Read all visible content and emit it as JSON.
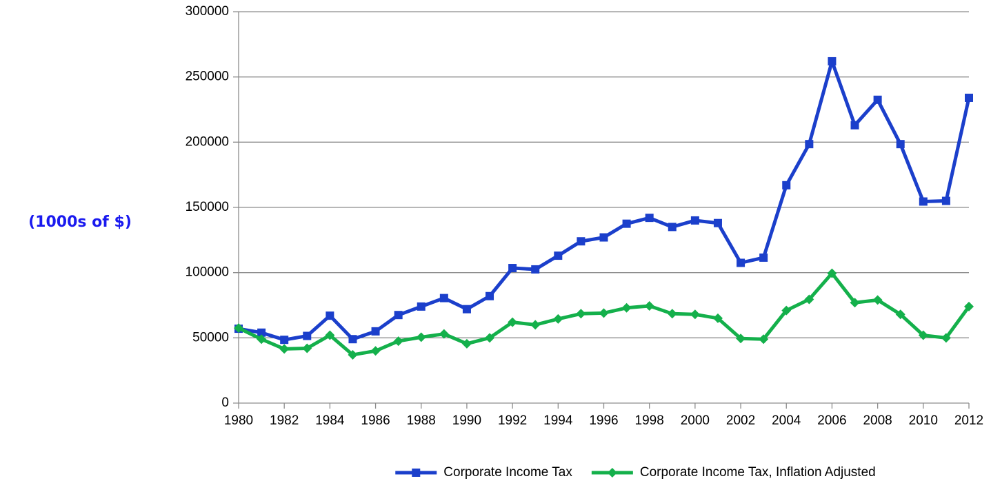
{
  "chart_data": {
    "type": "line",
    "y_label": "(1000s of $)",
    "x": [
      1980,
      1981,
      1982,
      1983,
      1984,
      1985,
      1986,
      1987,
      1988,
      1989,
      1990,
      1991,
      1992,
      1993,
      1994,
      1995,
      1996,
      1997,
      1998,
      1999,
      2000,
      2001,
      2002,
      2003,
      2004,
      2005,
      2006,
      2007,
      2008,
      2009,
      2010,
      2011,
      2012
    ],
    "xlim": [
      1980,
      2012
    ],
    "xticks": [
      1980,
      1982,
      1984,
      1986,
      1988,
      1990,
      1992,
      1994,
      1996,
      1998,
      2000,
      2002,
      2004,
      2006,
      2008,
      2010,
      2012
    ],
    "ylim": [
      0,
      300000
    ],
    "yticks": [
      0,
      50000,
      100000,
      150000,
      200000,
      250000,
      300000
    ],
    "grid": true,
    "legend": "bottom",
    "series": [
      {
        "name": "Corporate Income Tax",
        "color": "#1b3fcb",
        "marker": "square",
        "values": [
          57000,
          54000,
          48500,
          51500,
          67000,
          49000,
          55000,
          67500,
          74000,
          80500,
          72000,
          82000,
          103500,
          102500,
          113000,
          124000,
          127000,
          137500,
          142000,
          135000,
          140000,
          138000,
          107500,
          111500,
          167000,
          198500,
          262000,
          213000,
          232500,
          198500,
          154500,
          155000,
          234000
        ]
      },
      {
        "name": "Corporate Income Tax, Inflation Adjusted",
        "color": "#14b04b",
        "marker": "diamond",
        "values": [
          57500,
          49000,
          41500,
          42000,
          52000,
          37000,
          40000,
          47500,
          50500,
          53000,
          45500,
          50000,
          62000,
          60000,
          64500,
          68500,
          69000,
          73000,
          74500,
          68500,
          68000,
          65000,
          49500,
          49000,
          71000,
          79500,
          99500,
          77000,
          79000,
          68000,
          52000,
          50000,
          74000
        ]
      }
    ]
  }
}
